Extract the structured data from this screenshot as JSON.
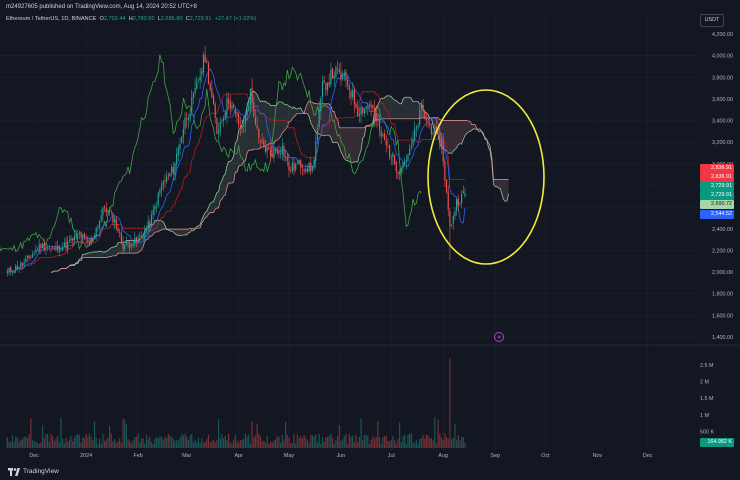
{
  "header": {
    "published_text": "m24927605 published on TradingView.com, Aug 14, 2024 20:52 UTC+8"
  },
  "legend": {
    "symbol": "Ethereum / TetherUS, 1D, BINANCE",
    "open_label": "O",
    "open": "2,702.44",
    "high_label": "H",
    "high": "2,780.50",
    "low_label": "L",
    "low": "2,685.80",
    "close_label": "C",
    "close": "2,729.91",
    "change": "+27.47 (+1.02%)"
  },
  "currency_button": "USDT",
  "price_axis_labels": [
    "4,200.00",
    "4,000.00",
    "3,800.00",
    "3,600.00",
    "3,400.00",
    "3,200.00",
    "3,000.00",
    "2,800.00",
    "2,600.00",
    "2,400.00",
    "2,200.00",
    "2,000.00",
    "1,800.00",
    "1,600.00",
    "1,400.00"
  ],
  "volume_axis_labels": [
    "2.5 M",
    "2 M",
    "1.5 M",
    "1 M",
    "500 K"
  ],
  "time_axis_labels": [
    "Dec",
    "2024",
    "Feb",
    "Mar",
    "Apr",
    "May",
    "Jun",
    "Jul",
    "Aug",
    "Sep",
    "Oct",
    "Nov",
    "Dec"
  ],
  "price_tags": [
    {
      "text": "2,836.91",
      "color": "#f23645"
    },
    {
      "text": "2,836.91",
      "color": "#f23645"
    },
    {
      "text": "2,729.91",
      "color": "#089981"
    },
    {
      "text": "2,729.91",
      "color": "#089981"
    },
    {
      "text": "2,690.72",
      "color": "#a5d6a7"
    },
    {
      "text": "2,544.52",
      "color": "#2962ff"
    }
  ],
  "volume_tag": {
    "text": "164.982 K",
    "color": "#089981"
  },
  "footer": {
    "brand": "TradingView"
  },
  "colors": {
    "up": "#26a69a",
    "down": "#ef5350",
    "tenkan": "#2962ff",
    "kijun": "#b71c1c",
    "lagging": "#43a047",
    "spanA": "#a5d6a7",
    "spanB": "#ef9a9a",
    "highlight": "#f5eb3b"
  },
  "chart_data": {
    "type": "candlestick",
    "symbol": "ETHUSDT",
    "interval": "1D",
    "y_scale": "linear",
    "ylim": [
      1400,
      4200
    ],
    "volume_ylim": [
      0,
      2500000
    ],
    "x_range": [
      "2023-11-13",
      "2024-12-31"
    ],
    "indicators": [
      "Ichimoku Cloud",
      "Volume"
    ],
    "close_path": [
      [
        "2023-11-15",
        2000
      ],
      [
        "2023-11-25",
        2080
      ],
      [
        "2023-12-05",
        2250
      ],
      [
        "2023-12-12",
        2200
      ],
      [
        "2023-12-20",
        2250
      ],
      [
        "2023-12-28",
        2350
      ],
      [
        "2024-01-03",
        2250
      ],
      [
        "2024-01-12",
        2600
      ],
      [
        "2024-01-18",
        2480
      ],
      [
        "2024-01-23",
        2250
      ],
      [
        "2024-01-31",
        2280
      ],
      [
        "2024-02-08",
        2450
      ],
      [
        "2024-02-15",
        2800
      ],
      [
        "2024-02-22",
        2950
      ],
      [
        "2024-02-29",
        3400
      ],
      [
        "2024-03-05",
        3600
      ],
      [
        "2024-03-12",
        4000
      ],
      [
        "2024-03-19",
        3300
      ],
      [
        "2024-03-26",
        3600
      ],
      [
        "2024-04-03",
        3300
      ],
      [
        "2024-04-08",
        3650
      ],
      [
        "2024-04-13",
        3200
      ],
      [
        "2024-04-20",
        3100
      ],
      [
        "2024-04-27",
        3150
      ],
      [
        "2024-05-01",
        2950
      ],
      [
        "2024-05-08",
        3000
      ],
      [
        "2024-05-15",
        2950
      ],
      [
        "2024-05-21",
        3700
      ],
      [
        "2024-05-28",
        3850
      ],
      [
        "2024-06-05",
        3750
      ],
      [
        "2024-06-11",
        3500
      ],
      [
        "2024-06-19",
        3550
      ],
      [
        "2024-06-24",
        3300
      ],
      [
        "2024-07-05",
        2950
      ],
      [
        "2024-07-12",
        3100
      ],
      [
        "2024-07-19",
        3500
      ],
      [
        "2024-07-24",
        3350
      ],
      [
        "2024-07-31",
        3200
      ],
      [
        "2024-08-05",
        2400
      ],
      [
        "2024-08-09",
        2650
      ],
      [
        "2024-08-14",
        2729.91
      ]
    ],
    "last_ohlc": {
      "date": "2024-08-14",
      "open": 2702.44,
      "high": 2780.5,
      "low": 2685.8,
      "close": 2729.91,
      "change": 27.47,
      "change_pct": 1.02
    },
    "period_high": {
      "date": "2024-03-12",
      "value": 4090
    },
    "period_low": {
      "date": "2024-08-05",
      "value": 2110
    },
    "volume_peak": {
      "date": "2024-08-05",
      "value": 2700000
    },
    "last_volume": 164982,
    "annotation": "yellow ellipse around Jul-Aug 2024 price drop"
  }
}
